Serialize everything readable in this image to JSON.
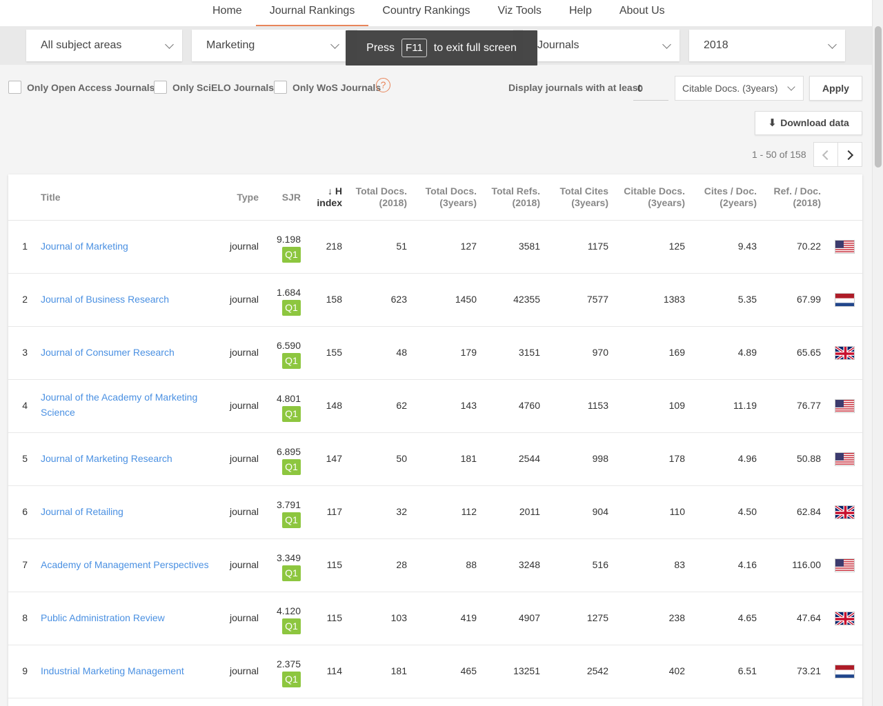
{
  "nav": {
    "items": [
      {
        "label": "Home",
        "name": "nav-home"
      },
      {
        "label": "Journal Rankings",
        "name": "nav-journal-rankings"
      },
      {
        "label": "Country Rankings",
        "name": "nav-country-rankings"
      },
      {
        "label": "Viz Tools",
        "name": "nav-viz-tools"
      },
      {
        "label": "Help",
        "name": "nav-help"
      },
      {
        "label": "About Us",
        "name": "nav-about-us"
      }
    ],
    "active": "Journal Rankings"
  },
  "filters": {
    "subject_area": "All subject areas",
    "subject_category": "Marketing",
    "type": "Journals",
    "year": "2018"
  },
  "fullscreen_toast": {
    "pre": "Press",
    "key": "F11",
    "post": "to exit full screen"
  },
  "options": {
    "open_access": "Only Open Access Journals",
    "scielo": "Only SciELO Journals",
    "wos": "Only WoS Journals",
    "help_icon": "?",
    "min_label": "Display journals with at least",
    "min_value": "0",
    "min_metric": "Citable Docs. (3years)",
    "apply_label": "Apply",
    "download_label": "Download data",
    "download_icon": "⬇"
  },
  "pagination": {
    "info": "1 - 50 of 158"
  },
  "table": {
    "headers": {
      "title": "Title",
      "type": "Type",
      "sjr": "SJR",
      "h_index_1": "↓ H",
      "h_index_2": "index",
      "total_docs_2018_1": "Total Docs.",
      "total_docs_2018_2": "(2018)",
      "total_docs_3y_1": "Total Docs.",
      "total_docs_3y_2": "(3years)",
      "total_refs_1": "Total Refs.",
      "total_refs_2": "(2018)",
      "total_cites_1": "Total Cites",
      "total_cites_2": "(3years)",
      "citable_docs_1": "Citable Docs.",
      "citable_docs_2": "(3years)",
      "cites_per_doc_1": "Cites / Doc.",
      "cites_per_doc_2": "(2years)",
      "refs_per_doc_1": "Ref. / Doc.",
      "refs_per_doc_2": "(2018)"
    },
    "rows": [
      {
        "rank": "1",
        "title": "Journal of Marketing",
        "type": "journal",
        "sjr": "9.198",
        "quartile": "Q1",
        "h_index": "218",
        "total_docs_2018": "51",
        "total_docs_3y": "127",
        "total_refs": "3581",
        "total_cites_3y": "1175",
        "citable_docs_3y": "125",
        "cites_per_doc": "9.43",
        "refs_per_doc": "70.22",
        "country": "us"
      },
      {
        "rank": "2",
        "title": "Journal of Business Research",
        "type": "journal",
        "sjr": "1.684",
        "quartile": "Q1",
        "h_index": "158",
        "total_docs_2018": "623",
        "total_docs_3y": "1450",
        "total_refs": "42355",
        "total_cites_3y": "7577",
        "citable_docs_3y": "1383",
        "cites_per_doc": "5.35",
        "refs_per_doc": "67.99",
        "country": "nl"
      },
      {
        "rank": "3",
        "title": "Journal of Consumer Research",
        "type": "journal",
        "sjr": "6.590",
        "quartile": "Q1",
        "h_index": "155",
        "total_docs_2018": "48",
        "total_docs_3y": "179",
        "total_refs": "3151",
        "total_cites_3y": "970",
        "citable_docs_3y": "169",
        "cites_per_doc": "4.89",
        "refs_per_doc": "65.65",
        "country": "gb"
      },
      {
        "rank": "4",
        "title": "Journal of the Academy of Marketing Science",
        "type": "journal",
        "sjr": "4.801",
        "quartile": "Q1",
        "h_index": "148",
        "total_docs_2018": "62",
        "total_docs_3y": "143",
        "total_refs": "4760",
        "total_cites_3y": "1153",
        "citable_docs_3y": "109",
        "cites_per_doc": "11.19",
        "refs_per_doc": "76.77",
        "country": "us"
      },
      {
        "rank": "5",
        "title": "Journal of Marketing Research",
        "type": "journal",
        "sjr": "6.895",
        "quartile": "Q1",
        "h_index": "147",
        "total_docs_2018": "50",
        "total_docs_3y": "181",
        "total_refs": "2544",
        "total_cites_3y": "998",
        "citable_docs_3y": "178",
        "cites_per_doc": "4.96",
        "refs_per_doc": "50.88",
        "country": "us"
      },
      {
        "rank": "6",
        "title": "Journal of Retailing",
        "type": "journal",
        "sjr": "3.791",
        "quartile": "Q1",
        "h_index": "117",
        "total_docs_2018": "32",
        "total_docs_3y": "112",
        "total_refs": "2011",
        "total_cites_3y": "904",
        "citable_docs_3y": "110",
        "cites_per_doc": "4.50",
        "refs_per_doc": "62.84",
        "country": "gb"
      },
      {
        "rank": "7",
        "title": "Academy of Management Perspectives",
        "type": "journal",
        "sjr": "3.349",
        "quartile": "Q1",
        "h_index": "115",
        "total_docs_2018": "28",
        "total_docs_3y": "88",
        "total_refs": "3248",
        "total_cites_3y": "516",
        "citable_docs_3y": "83",
        "cites_per_doc": "4.16",
        "refs_per_doc": "116.00",
        "country": "us"
      },
      {
        "rank": "8",
        "title": "Public Administration Review",
        "type": "journal",
        "sjr": "4.120",
        "quartile": "Q1",
        "h_index": "115",
        "total_docs_2018": "103",
        "total_docs_3y": "419",
        "total_refs": "4907",
        "total_cites_3y": "1275",
        "citable_docs_3y": "238",
        "cites_per_doc": "4.65",
        "refs_per_doc": "47.64",
        "country": "gb"
      },
      {
        "rank": "9",
        "title": "Industrial Marketing Management",
        "type": "journal",
        "sjr": "2.375",
        "quartile": "Q1",
        "h_index": "114",
        "total_docs_2018": "181",
        "total_docs_3y": "465",
        "total_refs": "13251",
        "total_cites_3y": "2542",
        "citable_docs_3y": "402",
        "cites_per_doc": "6.51",
        "refs_per_doc": "73.21",
        "country": "nl"
      }
    ]
  },
  "colors": {
    "accent": "#e8855a",
    "link": "#4a90e2",
    "q1": "#8dc63f"
  }
}
